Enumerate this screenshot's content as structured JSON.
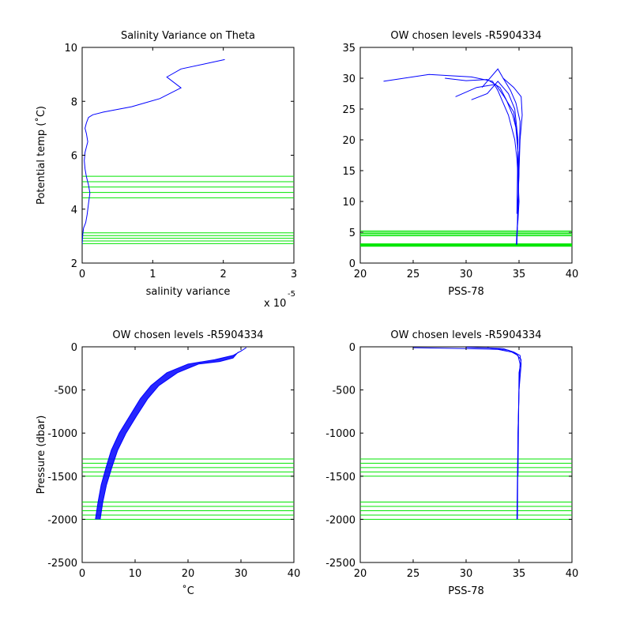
{
  "chart_data": [
    {
      "type": "line",
      "title": "Salinity Variance on Theta",
      "xlabel": "salinity variance",
      "ylabel": "Potential temp (˚C)",
      "xlim": [
        0,
        3e-05
      ],
      "ylim": [
        2,
        10
      ],
      "xticks": [
        0,
        1,
        2,
        3
      ],
      "xtick_labels": [
        "0",
        "1",
        "2",
        "3"
      ],
      "x_multiplier_base": "x 10",
      "x_multiplier_exp": "-5",
      "yticks": [
        2,
        4,
        6,
        8,
        10
      ],
      "grid": false,
      "line_color": "#0000ff",
      "level_color": "#00e600",
      "series": [
        {
          "x": [
            0.0,
            5e-08,
            1e-07,
            2e-07,
            5e-07,
            7e-07,
            9e-07,
            1.1e-06,
            9e-07,
            6e-07,
            4e-07,
            3e-07,
            4e-07,
            8e-07,
            6e-07,
            4e-07,
            6e-07,
            9e-07,
            1.5e-06,
            3e-06,
            7e-06,
            1.1e-05,
            1.4e-05,
            1.2e-05,
            1.4e-05,
            2.02e-05
          ],
          "y": [
            2.7,
            2.9,
            3.1,
            3.3,
            3.5,
            3.8,
            4.2,
            4.6,
            4.9,
            5.2,
            5.5,
            5.8,
            6.1,
            6.5,
            6.8,
            7.0,
            7.2,
            7.4,
            7.5,
            7.6,
            7.8,
            8.1,
            8.5,
            8.9,
            9.2,
            9.55
          ]
        }
      ],
      "chosen_levels": [
        2.72,
        2.82,
        2.92,
        3.02,
        3.12,
        4.42,
        4.62,
        4.82,
        5.02,
        5.22
      ]
    },
    {
      "type": "line",
      "title": "OW chosen levels -R5904334",
      "xlabel": "PSS-78",
      "ylabel": "",
      "xlim": [
        20,
        40
      ],
      "ylim": [
        0,
        35
      ],
      "xticks": [
        20,
        25,
        30,
        35,
        40
      ],
      "yticks": [
        0,
        5,
        10,
        15,
        20,
        25,
        30,
        35
      ],
      "grid": false,
      "line_color": "#0000ff",
      "level_color": "#00e600",
      "series": [
        {
          "x": [
            22.2,
            26.5,
            30.5,
            32.5,
            33.0,
            33.5,
            34.0,
            34.3,
            34.6,
            34.8,
            34.9,
            35.0,
            34.9,
            34.8,
            34.75
          ],
          "y": [
            29.5,
            30.6,
            30.2,
            29.5,
            28.0,
            26.0,
            24.0,
            22.0,
            20.0,
            17.0,
            14.0,
            10.0,
            7.0,
            5.0,
            3.0
          ]
        },
        {
          "x": [
            28.0,
            30.0,
            32.0,
            33.2,
            33.8,
            34.4,
            34.7,
            34.9,
            34.95,
            34.8
          ],
          "y": [
            30.0,
            29.6,
            29.8,
            28.5,
            26.5,
            24.0,
            22.0,
            18.0,
            12.0,
            4.0
          ]
        },
        {
          "x": [
            29.0,
            31.0,
            32.8,
            33.6,
            34.5,
            34.8,
            35.0,
            34.85
          ],
          "y": [
            27.0,
            28.5,
            29.0,
            27.0,
            24.5,
            21.0,
            15.0,
            6.0
          ]
        },
        {
          "x": [
            30.5,
            32.0,
            33.0,
            34.0,
            34.6,
            34.9,
            34.8
          ],
          "y": [
            26.5,
            27.5,
            29.5,
            27.5,
            25.0,
            20.0,
            8.0
          ]
        },
        {
          "x": [
            31.5,
            33.0,
            33.5,
            34.2,
            34.7,
            35.1,
            35.0,
            34.8
          ],
          "y": [
            28.5,
            31.5,
            30.0,
            28.0,
            26.0,
            23.0,
            16.0,
            3.0
          ]
        },
        {
          "x": [
            33.5,
            34.5,
            35.2,
            35.3,
            35.1,
            34.9
          ],
          "y": [
            30.0,
            28.5,
            27.0,
            24.0,
            20.0,
            10.0
          ]
        }
      ],
      "chosen_levels": [
        2.72,
        2.82,
        2.92,
        3.02,
        3.12,
        4.42,
        4.62,
        4.82,
        5.02,
        5.22
      ]
    },
    {
      "type": "line",
      "title": "OW chosen levels -R5904334",
      "xlabel": "˚C",
      "ylabel": "Pressure (dbar)",
      "xlim": [
        0,
        40
      ],
      "ylim": [
        -2500,
        0
      ],
      "xticks": [
        0,
        10,
        20,
        30,
        40
      ],
      "yticks": [
        -2500,
        -2000,
        -1500,
        -1000,
        -500,
        0
      ],
      "grid": false,
      "line_color": "#0000ff",
      "level_color": "#00e600",
      "series": [
        {
          "x": [
            2.5,
            3.0,
            3.6,
            4.5,
            5.5,
            7.0,
            9.0,
            11.0,
            13.0,
            16.0,
            20.0,
            25.0,
            28.5,
            30.0,
            31.0
          ],
          "y": [
            -2000,
            -1800,
            -1600,
            -1400,
            -1200,
            -1000,
            -800,
            -600,
            -450,
            -300,
            -200,
            -150,
            -100,
            -50,
            -10
          ]
        },
        {
          "x": [
            3.4,
            3.9,
            4.6,
            5.6,
            6.7,
            8.3,
            10.3,
            12.4,
            14.5,
            18.0,
            22.0,
            26.0,
            28.5,
            29.5
          ],
          "y": [
            -2000,
            -1800,
            -1600,
            -1400,
            -1200,
            -1000,
            -800,
            -600,
            -450,
            -300,
            -200,
            -170,
            -130,
            -60
          ]
        }
      ],
      "chosen_levels": [
        -1300,
        -1350,
        -1400,
        -1450,
        -1500,
        -1800,
        -1850,
        -1900,
        -1950,
        -2000
      ]
    },
    {
      "type": "line",
      "title": "OW chosen levels -R5904334",
      "xlabel": "PSS-78",
      "ylabel": "",
      "xlim": [
        20,
        40
      ],
      "ylim": [
        -2500,
        0
      ],
      "xticks": [
        20,
        25,
        30,
        35,
        40
      ],
      "yticks": [
        -2500,
        -2000,
        -1500,
        -1000,
        -500,
        0
      ],
      "grid": false,
      "line_color": "#0000ff",
      "level_color": "#00e600",
      "series": [
        {
          "x": [
            25.0,
            30.0,
            33.0,
            34.3,
            34.9,
            35.1,
            35.0,
            34.9,
            34.8
          ],
          "y": [
            -10,
            -20,
            -30,
            -60,
            -100,
            -200,
            -500,
            -1000,
            -2000
          ]
        },
        {
          "x": [
            30.0,
            33.5,
            34.5,
            35.1,
            35.2,
            35.0,
            34.9,
            34.85
          ],
          "y": [
            -5,
            -20,
            -60,
            -100,
            -200,
            -500,
            -1000,
            -2000
          ]
        },
        {
          "x": [
            32.0,
            34.0,
            34.7,
            35.2,
            35.0,
            34.9
          ],
          "y": [
            -10,
            -40,
            -80,
            -150,
            -300,
            -1500
          ]
        }
      ],
      "chosen_levels": [
        -1300,
        -1350,
        -1400,
        -1450,
        -1500,
        -1800,
        -1850,
        -1900,
        -1950,
        -2000
      ]
    }
  ]
}
